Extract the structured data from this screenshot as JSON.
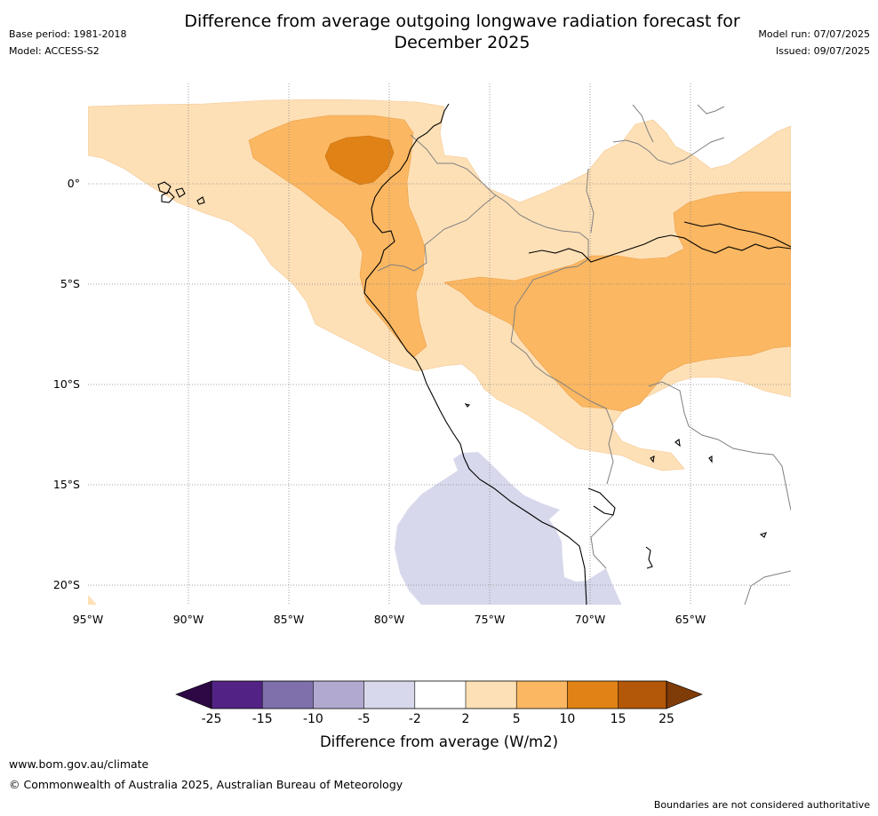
{
  "title": {
    "line1": "Difference from average outgoing longwave radiation forecast for",
    "line2": "December 2025"
  },
  "meta": {
    "base_period": "Base period: 1981-2018",
    "model": "Model: ACCESS-S2",
    "model_run": "Model run: 07/07/2025",
    "issued": "Issued: 09/07/2025"
  },
  "map": {
    "lat_labels": [
      "0°",
      "5°S",
      "10°S",
      "15°S",
      "20°S"
    ],
    "lon_labels": [
      "95°W",
      "90°W",
      "85°W",
      "80°W",
      "75°W",
      "70°W",
      "65°W"
    ],
    "category_colors": {
      "minus25_below": "#2d0845",
      "minus25_minus15": "#522384",
      "minus15_minus10": "#7f6fab",
      "minus10_minus5": "#b2a9d1",
      "minus5_minus2": "#d7d8eb",
      "minus2_2": "#ffffff",
      "2_5": "#fee0b6",
      "5_10": "#fbb762",
      "10_15": "#e08215",
      "15_25": "#b35708",
      "25_above": "#7f3b08"
    }
  },
  "colorbar": {
    "ticks": [
      "-25",
      "-15",
      "-10",
      "-5",
      "-2",
      "2",
      "5",
      "10",
      "15",
      "25"
    ],
    "label": "Difference from average (W/m2)"
  },
  "footer": {
    "website": "www.bom.gov.au/climate",
    "copyright": "© Commonwealth of Australia 2025, Australian Bureau of Meteorology",
    "disclaimer": "Boundaries are not considered authoritative"
  }
}
